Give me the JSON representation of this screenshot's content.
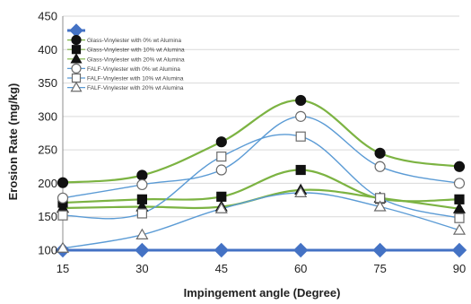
{
  "chart_data": {
    "type": "line",
    "xlabel": "Impingement angle (Degree)",
    "ylabel": "Erosion Rate (mg/kg)",
    "x": [
      15,
      30,
      45,
      60,
      75,
      90
    ],
    "xlim": [
      15,
      90
    ],
    "ylim": [
      100,
      450
    ],
    "xticks": [
      "15",
      "30",
      "45",
      "60",
      "75",
      "90"
    ],
    "yticks": [
      "100",
      "150",
      "200",
      "250",
      "300",
      "350",
      "400",
      "450"
    ],
    "grid": "horizontal",
    "legend_position": "top-left",
    "series": [
      {
        "name": "",
        "values": [
          100,
          100,
          100,
          100,
          100,
          100
        ],
        "marker": "diamond",
        "line_color": "#4472C4",
        "marker_fill": "#4472C4"
      },
      {
        "name": "Glass-Vinylester with 0% wt Alumina",
        "values": [
          201,
          212,
          262,
          324,
          245,
          225
        ],
        "marker": "circle-filled",
        "line_color": "#7CB342",
        "marker_fill": "#111111"
      },
      {
        "name": "Glass-Vinylester with 10% wt Alumina",
        "values": [
          171,
          176,
          180,
          220,
          177,
          176
        ],
        "marker": "square-filled",
        "line_color": "#7CB342",
        "marker_fill": "#111111"
      },
      {
        "name": "Glass-Vinylester with 20% wt Alumina",
        "values": [
          163,
          165,
          165,
          190,
          178,
          162
        ],
        "marker": "triangle-filled",
        "line_color": "#7CB342",
        "marker_fill": "#111111"
      },
      {
        "name": "FALF-Vinylester with 0% wt Alumina",
        "values": [
          178,
          198,
          220,
          300,
          225,
          200
        ],
        "marker": "circle-open",
        "line_color": "#5B9BD5",
        "marker_fill": "none"
      },
      {
        "name": "FALF-Vinylester with 10% wt Alumina",
        "values": [
          152,
          155,
          240,
          270,
          178,
          148
        ],
        "marker": "square-open",
        "line_color": "#5B9BD5",
        "marker_fill": "none"
      },
      {
        "name": "FALF-Vinylester with 20% wt Alumina",
        "values": [
          103,
          123,
          162,
          186,
          165,
          130
        ],
        "marker": "triangle-open",
        "line_color": "#5B9BD5",
        "marker_fill": "none"
      }
    ]
  }
}
